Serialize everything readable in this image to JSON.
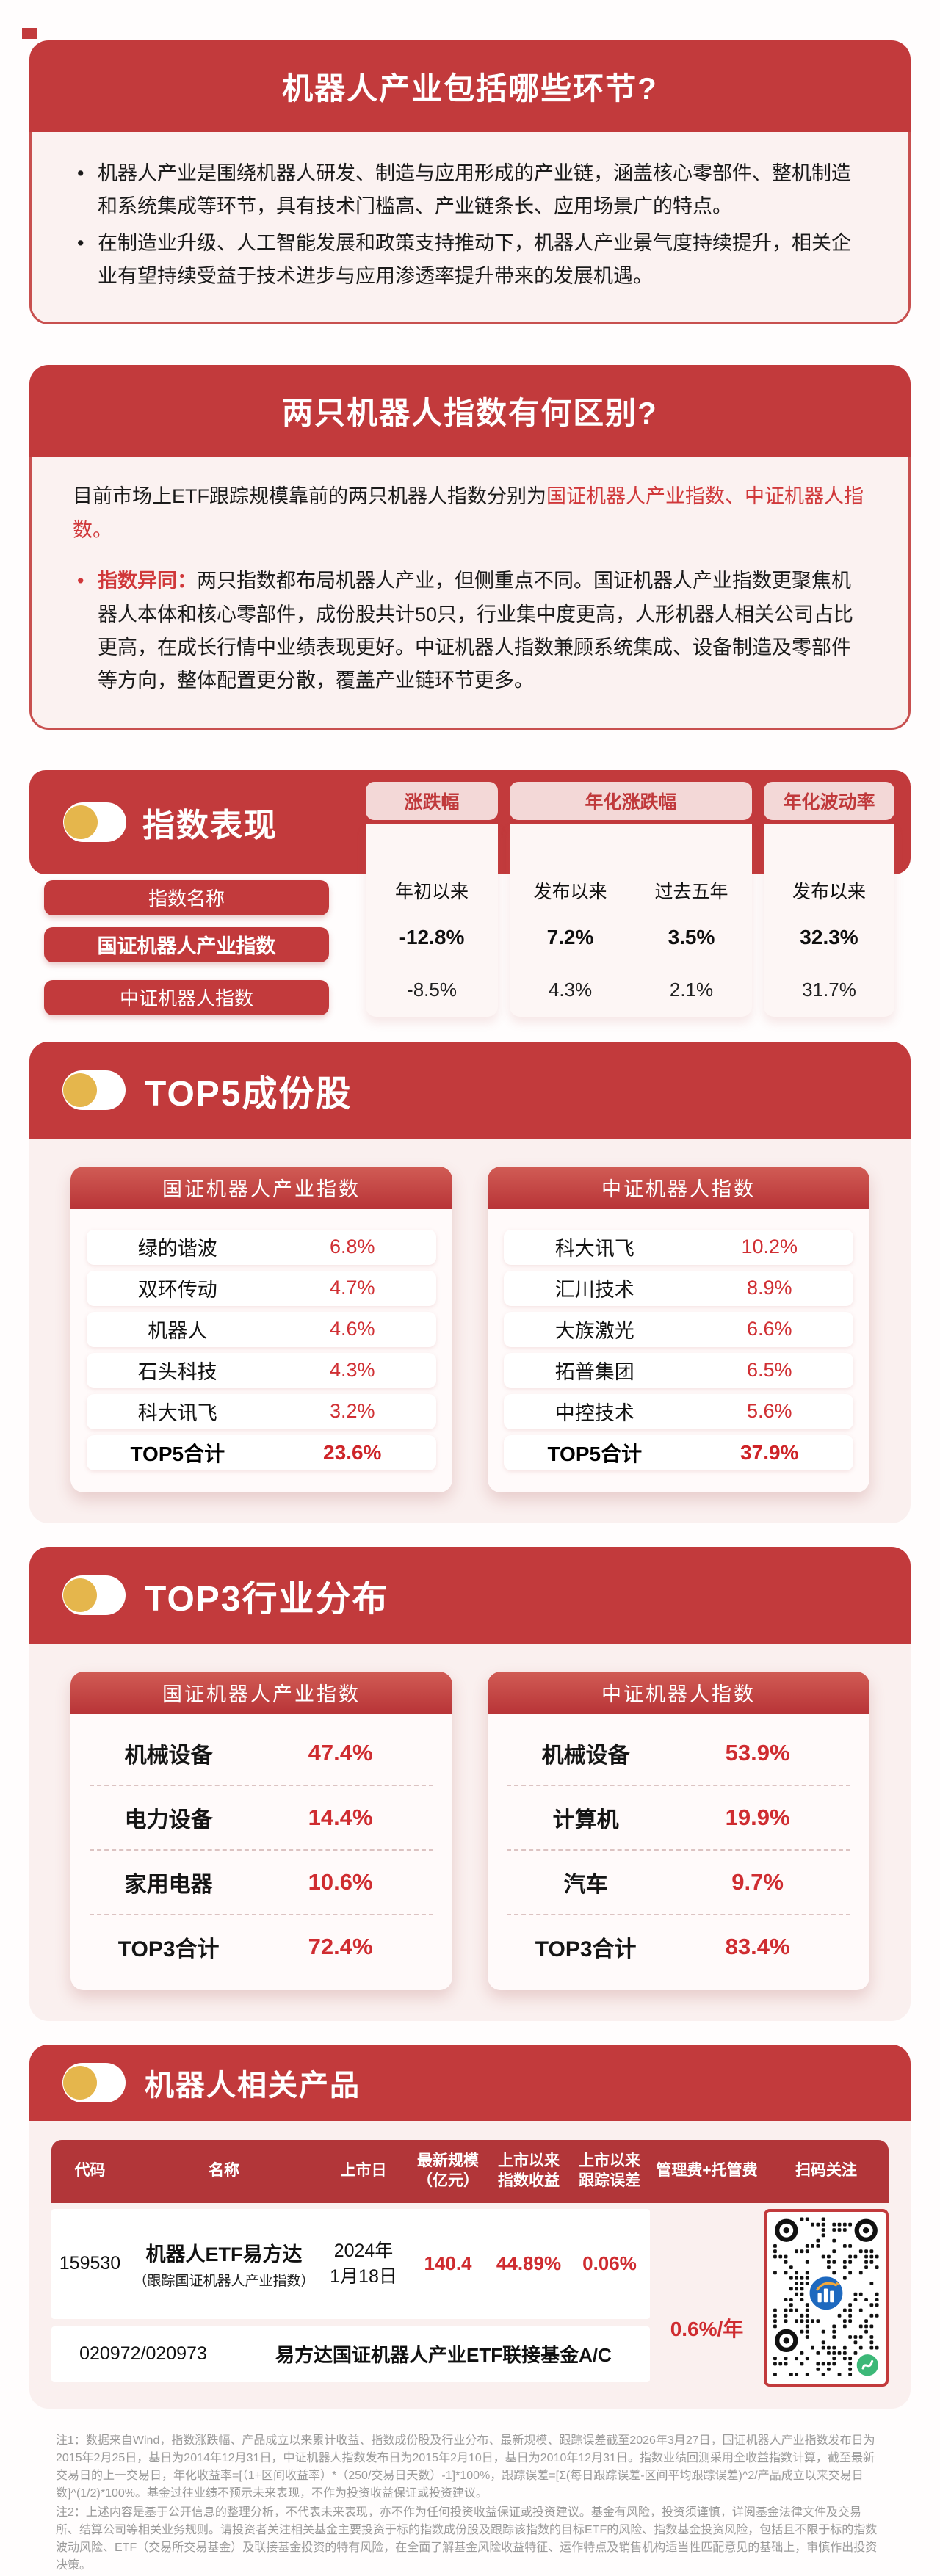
{
  "colors": {
    "primary_red": "#c23a3c",
    "deep_red": "#b23639",
    "value_red": "#cf2c30",
    "light_pink_body": "#fbf2f1",
    "pill_pink": "#f3d8d7",
    "icon_yellow": "#e5b64c"
  },
  "sections": {
    "q1": {
      "title": "机器人产业包括哪些环节?",
      "bullets": [
        "机器人产业是围绕机器人研发、制造与应用形成的产业链，涵盖核心零部件、整机制造和系统集成等环节，具有技术门槛高、产业链条长、应用场景广的特点。",
        "在制造业升级、人工智能发展和政策支持推动下，机器人产业景气度持续提升，相关企业有望持续受益于技术进步与应用渗透率提升带来的发展机遇。"
      ]
    },
    "q2": {
      "title": "两只机器人指数有何区别?",
      "intro_prefix": "目前市场上ETF跟踪规模靠前的两只机器人指数分别为",
      "intro_highlight": "国证机器人产业指数、中证机器人指数。",
      "diff_label": "指数异同：",
      "diff_text": "两只指数都布局机器人产业，但侧重点不同。国证机器人产业指数更聚焦机器人本体和核心零部件，成份股共计50只，行业集中度更高，人形机器人相关公司占比更高，在成长行情中业绩表现更好。中证机器人指数兼顾系统集成、设备制造及零部件等方向，整体配置更分散，覆盖产业链环节更多。"
    }
  },
  "performance": {
    "title": "指数表现",
    "groups": [
      "涨跌幅",
      "年化涨跌幅",
      "年化波动率"
    ],
    "row_label": "指数名称",
    "subs": [
      "年初以来",
      "发布以来",
      "过去五年",
      "发布以来"
    ],
    "rows": [
      {
        "name": "国证机器人产业指数",
        "v0": "-12.8%",
        "v1": "7.2%",
        "v2": "3.5%",
        "v3": "32.3%"
      },
      {
        "name": "中证机器人指数",
        "v0": "-8.5%",
        "v1": "4.3%",
        "v2": "2.1%",
        "v3": "31.7%"
      }
    ]
  },
  "top5": {
    "title": "TOP5成份股",
    "total_label": "TOP5合计",
    "cards": [
      {
        "header": "国证机器人产业指数",
        "rows": [
          {
            "n": "绿的谐波",
            "v": "6.8%"
          },
          {
            "n": "双环传动",
            "v": "4.7%"
          },
          {
            "n": "机器人",
            "v": "4.6%"
          },
          {
            "n": "石头科技",
            "v": "4.3%"
          },
          {
            "n": "科大讯飞",
            "v": "3.2%"
          }
        ],
        "total": "23.6%"
      },
      {
        "header": "中证机器人指数",
        "rows": [
          {
            "n": "科大讯飞",
            "v": "10.2%"
          },
          {
            "n": "汇川技术",
            "v": "8.9%"
          },
          {
            "n": "大族激光",
            "v": "6.6%"
          },
          {
            "n": "拓普集团",
            "v": "6.5%"
          },
          {
            "n": "中控技术",
            "v": "5.6%"
          }
        ],
        "total": "37.9%"
      }
    ]
  },
  "top3": {
    "title": "TOP3行业分布",
    "total_label": "TOP3合计",
    "cards": [
      {
        "header": "国证机器人产业指数",
        "rows": [
          {
            "n": "机械设备",
            "v": "47.4%"
          },
          {
            "n": "电力设备",
            "v": "14.4%"
          },
          {
            "n": "家用电器",
            "v": "10.6%"
          }
        ],
        "total": "72.4%"
      },
      {
        "header": "中证机器人指数",
        "rows": [
          {
            "n": "机械设备",
            "v": "53.9%"
          },
          {
            "n": "计算机",
            "v": "19.9%"
          },
          {
            "n": "汽车",
            "v": "9.7%"
          }
        ],
        "total": "83.4%"
      }
    ]
  },
  "products": {
    "title": "机器人相关产品",
    "headers": [
      [
        "代码"
      ],
      [
        "名称"
      ],
      [
        "上市日"
      ],
      [
        "最新规模",
        "（亿元）"
      ],
      [
        "上市以来",
        "指数收益"
      ],
      [
        "上市以来",
        "跟踪误差"
      ],
      [
        "管理费+托管费"
      ],
      [
        "扫码关注"
      ]
    ],
    "etf": {
      "code": "159530",
      "name": "机器人ETF易方达",
      "name_sub": "（跟踪国证机器人产业指数）",
      "date1": "2024年",
      "date2": "1月18日",
      "scale": "140.4",
      "ret": "44.89%",
      "err": "0.06%"
    },
    "fee": "0.6%/年",
    "feeder": {
      "code": "020972/020973",
      "name": "易方达国证机器人产业ETF联接基金A/C"
    }
  },
  "footnotes": {
    "note1": "注1：数据来自Wind，指数涨跌幅、产品成立以来累计收益、指数成份股及行业分布、最新规模、跟踪误差截至2026年3月27日，国证机器人产业指数发布日为2015年2月25日，基日为2014年12月31日，中证机器人指数发布日为2015年2月10日，基日为2010年12月31日。指数业绩回测采用全收益指数计算，截至最新交易日的上一交易日，年化收益率=[（1+区间收益率）*（250/交易日天数）-1]*100%，跟踪误差=[Σ(每日跟踪误差-区间平均跟踪误差)^2/产品成立以来交易日数]^(1/2)*100%。基金过往业绩不预示未来表现，不作为投资收益保证或投资建议。",
    "note2": "注2：上述内容是基于公开信息的整理分析，不代表未来表现，亦不作为任何投资收益保证或投资建议。基金有风险，投资须谨慎，详阅基金法律文件及交易所、结算公司等相关业务规则。请投资者关注相关基金主要投资于标的指数成份股及跟踪该指数的目标ETF的风险、指数基金投资风险，包括且不限于标的指数波动风险、ETF（交易所交易基金）及联接基金投资的特有风险，在全面了解基金风险收益特征、运作特点及销售机构适当性匹配意见的基础上，审慎作出投资决策。"
  }
}
